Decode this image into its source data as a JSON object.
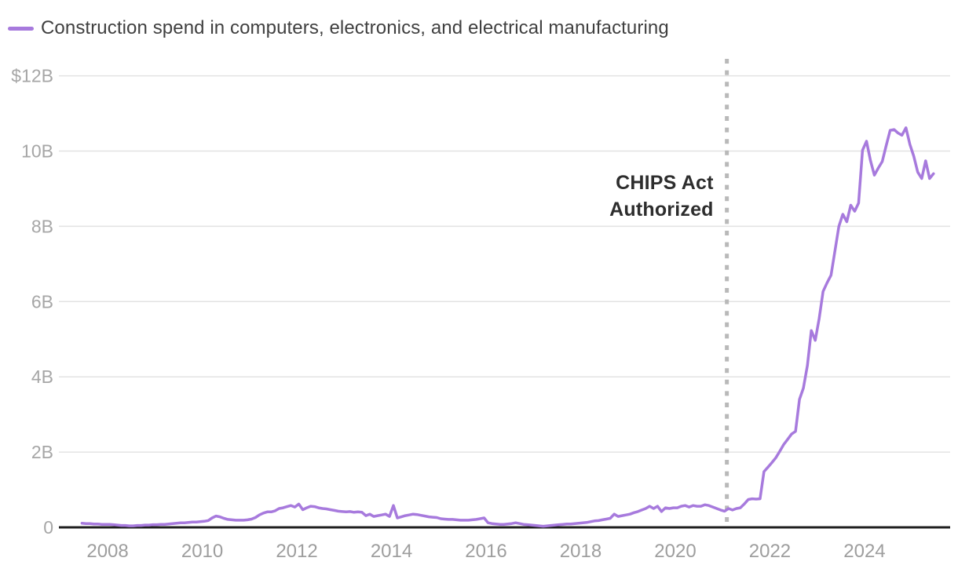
{
  "legend": {
    "label": "Construction spend in computers, electronics, and electrical manufacturing",
    "swatch_color": "#a77add"
  },
  "chart_data": {
    "type": "line",
    "title": "Construction spend in computers, electronics, and electrical manufacturing",
    "units": "$B",
    "grid": "horizontal",
    "legend_position": "top-left",
    "x_domain": [
      2006.97,
      2025.81
    ],
    "y_domain": [
      0,
      12.45
    ],
    "y_ticks": [
      {
        "v": 0,
        "label": "0"
      },
      {
        "v": 2,
        "label": "2B"
      },
      {
        "v": 4,
        "label": "4B"
      },
      {
        "v": 6,
        "label": "6B"
      },
      {
        "v": 8,
        "label": "8B"
      },
      {
        "v": 10,
        "label": "10B"
      },
      {
        "v": 12,
        "label": "$12B"
      }
    ],
    "x_ticks": [
      {
        "v": 2008,
        "label": "2008"
      },
      {
        "v": 2010,
        "label": "2010"
      },
      {
        "v": 2012,
        "label": "2012"
      },
      {
        "v": 2014,
        "label": "2014"
      },
      {
        "v": 2016,
        "label": "2016"
      },
      {
        "v": 2018,
        "label": "2018"
      },
      {
        "v": 2020,
        "label": "2020"
      },
      {
        "v": 2022,
        "label": "2022"
      },
      {
        "v": 2024,
        "label": "2024"
      }
    ],
    "annotation": {
      "x_year": 2021.09,
      "line1": "CHIPS Act",
      "line2": "Authorized"
    },
    "series": [
      {
        "name": "Construction spend in computers, electronics, and electrical manufacturing",
        "color": "#a77add",
        "start_year": 2007.4583,
        "step_years": 0.0833333,
        "values": [
          0.11,
          0.1,
          0.1,
          0.09,
          0.09,
          0.08,
          0.08,
          0.08,
          0.07,
          0.06,
          0.05,
          0.05,
          0.04,
          0.04,
          0.05,
          0.05,
          0.06,
          0.06,
          0.07,
          0.07,
          0.08,
          0.08,
          0.09,
          0.1,
          0.11,
          0.12,
          0.12,
          0.13,
          0.14,
          0.14,
          0.15,
          0.16,
          0.18,
          0.25,
          0.3,
          0.28,
          0.24,
          0.21,
          0.2,
          0.19,
          0.19,
          0.19,
          0.2,
          0.22,
          0.26,
          0.33,
          0.38,
          0.41,
          0.41,
          0.44,
          0.5,
          0.52,
          0.55,
          0.58,
          0.54,
          0.62,
          0.47,
          0.52,
          0.56,
          0.55,
          0.52,
          0.5,
          0.49,
          0.47,
          0.45,
          0.43,
          0.42,
          0.41,
          0.42,
          0.4,
          0.41,
          0.4,
          0.31,
          0.35,
          0.29,
          0.31,
          0.33,
          0.35,
          0.29,
          0.58,
          0.25,
          0.28,
          0.31,
          0.33,
          0.35,
          0.34,
          0.32,
          0.3,
          0.28,
          0.27,
          0.26,
          0.23,
          0.22,
          0.21,
          0.21,
          0.2,
          0.19,
          0.19,
          0.19,
          0.2,
          0.21,
          0.23,
          0.25,
          0.12,
          0.1,
          0.09,
          0.08,
          0.08,
          0.09,
          0.1,
          0.12,
          0.1,
          0.08,
          0.07,
          0.06,
          0.05,
          0.04,
          0.03,
          0.04,
          0.05,
          0.06,
          0.07,
          0.08,
          0.09,
          0.09,
          0.1,
          0.11,
          0.12,
          0.13,
          0.15,
          0.17,
          0.18,
          0.2,
          0.22,
          0.24,
          0.35,
          0.29,
          0.31,
          0.33,
          0.35,
          0.39,
          0.42,
          0.46,
          0.5,
          0.56,
          0.5,
          0.56,
          0.42,
          0.52,
          0.5,
          0.52,
          0.52,
          0.56,
          0.58,
          0.54,
          0.58,
          0.56,
          0.56,
          0.6,
          0.58,
          0.54,
          0.5,
          0.46,
          0.43,
          0.5,
          0.46,
          0.5,
          0.52,
          0.62,
          0.74,
          0.76,
          0.75,
          0.76,
          1.48,
          1.6,
          1.72,
          1.85,
          2.02,
          2.2,
          2.34,
          2.48,
          2.55,
          3.4,
          3.7,
          4.3,
          5.23,
          4.97,
          5.55,
          6.27,
          6.5,
          6.7,
          7.35,
          8.0,
          8.32,
          8.12,
          8.56,
          8.4,
          8.62,
          10.02,
          10.26,
          9.75,
          9.36,
          9.55,
          9.72,
          10.15,
          10.55,
          10.57,
          10.48,
          10.42,
          10.62,
          10.18,
          9.86,
          9.44,
          9.27,
          9.74,
          9.27,
          9.4
        ]
      }
    ]
  }
}
